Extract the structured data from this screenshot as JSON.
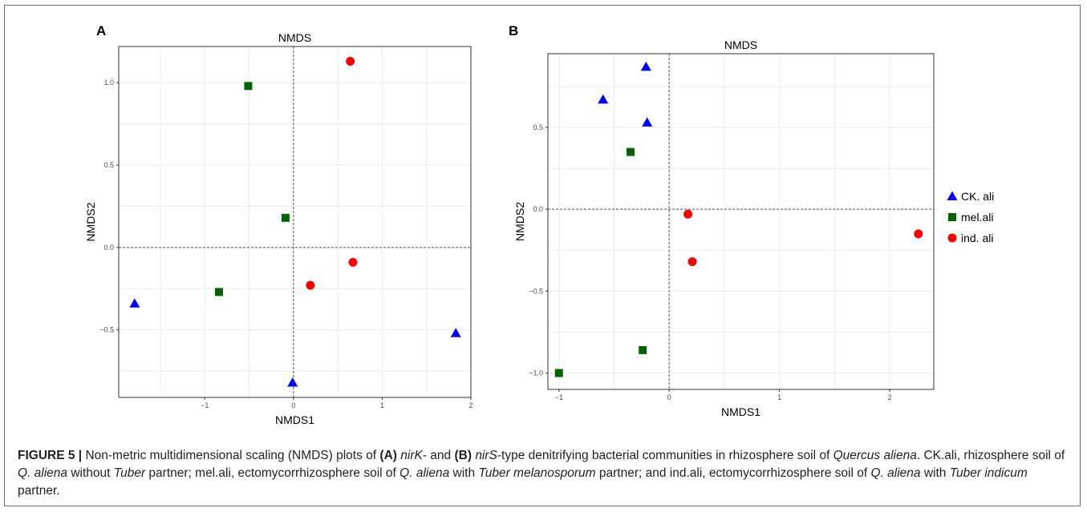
{
  "figure": {
    "caption": {
      "figure_label": "FIGURE 5 |",
      "part1": " Non-metric multidimensional scaling (NMDS) plots of ",
      "a_ref": "(A)",
      "sp1": " ",
      "gene_a": "nirK",
      "part2": "- and ",
      "b_ref": "(B)",
      "sp2": " ",
      "gene_b": "nirS",
      "part3": "-type denitrifying bacterial communities in rhizosphere soil of ",
      "species": "Quercus aliena",
      "part4": ". CK.ali, rhizosphere soil of ",
      "q1": "Q. aliena",
      "part5": " without ",
      "tuber1": "Tuber",
      "part6": " partner; mel.ali, ectomycorrhizosphere soil of ",
      "q2": "Q. aliena",
      "part7": " with ",
      "tuber2": "Tuber melanosporum",
      "part8": " partner; and ind.ali, ectomycorrhizosphere soil of ",
      "q3": "Q. aliena",
      "part9": " with ",
      "tuber3": "Tuber indicum",
      "part10": " partner."
    }
  },
  "colors": {
    "CK": "#0000ff",
    "mel": "#006400",
    "ind": "#ff0000"
  },
  "legend": {
    "items": [
      {
        "key": "CK",
        "label": "CK. ali",
        "shape": "triangle"
      },
      {
        "key": "mel",
        "label": "mel.ali",
        "shape": "square"
      },
      {
        "key": "ind",
        "label": "ind. ali",
        "shape": "circle"
      }
    ]
  },
  "chart_data": [
    {
      "panel": "A",
      "type": "scatter",
      "title": "NMDS",
      "xlabel": "NMDS1",
      "ylabel": "NMDS2",
      "xlim": [
        -1.97,
        2.0
      ],
      "ylim": [
        -0.91,
        1.22
      ],
      "xticks": [
        -1,
        0,
        1,
        2
      ],
      "xtick_labels": [
        "−1",
        "0",
        "1",
        "2"
      ],
      "yticks": [
        -0.5,
        0.0,
        0.5,
        1.0
      ],
      "ytick_labels": [
        "−0.5",
        "0.0",
        "0.5",
        "1.0"
      ],
      "grid": true,
      "series": [
        {
          "key": "CK",
          "x": [
            -1.79,
            -0.01,
            1.83
          ],
          "y": [
            -0.34,
            -0.82,
            -0.52
          ]
        },
        {
          "key": "mel",
          "x": [
            -0.51,
            -0.09,
            -0.84
          ],
          "y": [
            0.98,
            0.18,
            -0.27
          ]
        },
        {
          "key": "ind",
          "x": [
            0.64,
            0.67,
            0.19
          ],
          "y": [
            1.13,
            -0.09,
            -0.23
          ]
        }
      ]
    },
    {
      "panel": "B",
      "type": "scatter",
      "title": "NMDS",
      "xlabel": "NMDS1",
      "ylabel": "NMDS2",
      "xlim": [
        -1.1,
        2.4
      ],
      "ylim": [
        -1.1,
        0.95
      ],
      "xticks": [
        -1,
        0,
        1,
        2
      ],
      "xtick_labels": [
        "−1",
        "0",
        "1",
        "2"
      ],
      "yticks": [
        -1.0,
        -0.5,
        0.0,
        0.5
      ],
      "ytick_labels": [
        "−1.0",
        "−0.5",
        "0.0",
        "0.5"
      ],
      "grid": true,
      "series": [
        {
          "key": "CK",
          "x": [
            -0.21,
            -0.6,
            -0.2
          ],
          "y": [
            0.87,
            0.67,
            0.53
          ]
        },
        {
          "key": "mel",
          "x": [
            -0.35,
            -0.24,
            -1.0
          ],
          "y": [
            0.35,
            -0.86,
            -1.0
          ]
        },
        {
          "key": "ind",
          "x": [
            0.17,
            0.21,
            2.26
          ],
          "y": [
            -0.03,
            -0.32,
            -0.15
          ]
        }
      ]
    }
  ]
}
